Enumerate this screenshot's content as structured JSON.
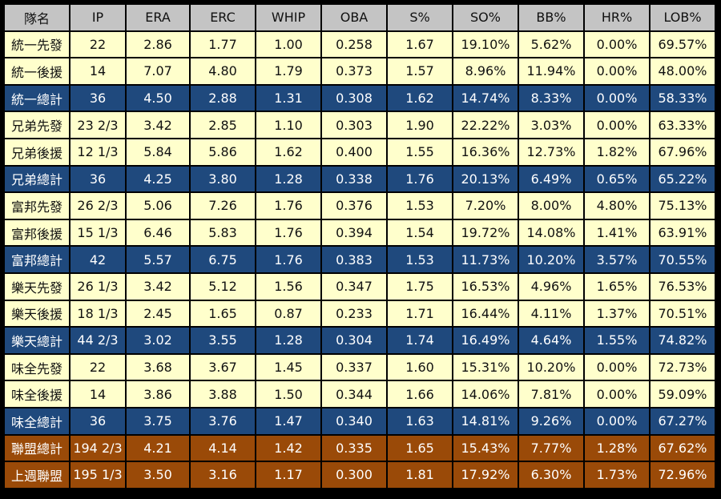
{
  "columns": [
    "隊名",
    "IP",
    "ERA",
    "ERC",
    "WHIP",
    "OBA",
    "S%",
    "SO%",
    "BB%",
    "HR%",
    "LOB%"
  ],
  "rows": [
    {
      "type": "start",
      "cells": [
        "統一先發",
        "22",
        "2.86",
        "1.77",
        "1.00",
        "0.258",
        "1.67",
        "19.10%",
        "5.62%",
        "0.00%",
        "69.57%"
      ]
    },
    {
      "type": "relief",
      "cells": [
        "統一後援",
        "14",
        "7.07",
        "4.80",
        "1.79",
        "0.373",
        "1.57",
        "8.96%",
        "11.94%",
        "0.00%",
        "48.00%"
      ]
    },
    {
      "type": "team",
      "cells": [
        "統一總計",
        "36",
        "4.50",
        "2.88",
        "1.31",
        "0.308",
        "1.62",
        "14.74%",
        "8.33%",
        "0.00%",
        "58.33%"
      ]
    },
    {
      "type": "start",
      "cells": [
        "兄弟先發",
        "23 2/3",
        "3.42",
        "2.85",
        "1.10",
        "0.303",
        "1.90",
        "22.22%",
        "3.03%",
        "0.00%",
        "63.33%"
      ]
    },
    {
      "type": "relief",
      "cells": [
        "兄弟後援",
        "12 1/3",
        "5.84",
        "5.86",
        "1.62",
        "0.400",
        "1.55",
        "16.36%",
        "12.73%",
        "1.82%",
        "67.96%"
      ]
    },
    {
      "type": "team",
      "cells": [
        "兄弟總計",
        "36",
        "4.25",
        "3.80",
        "1.28",
        "0.338",
        "1.76",
        "20.13%",
        "6.49%",
        "0.65%",
        "65.22%"
      ]
    },
    {
      "type": "start",
      "cells": [
        "富邦先發",
        "26 2/3",
        "5.06",
        "7.26",
        "1.76",
        "0.376",
        "1.53",
        "7.20%",
        "8.00%",
        "4.80%",
        "75.13%"
      ]
    },
    {
      "type": "relief",
      "cells": [
        "富邦後援",
        "15 1/3",
        "6.46",
        "5.83",
        "1.76",
        "0.394",
        "1.54",
        "19.72%",
        "14.08%",
        "1.41%",
        "63.91%"
      ]
    },
    {
      "type": "team",
      "cells": [
        "富邦總計",
        "42",
        "5.57",
        "6.75",
        "1.76",
        "0.383",
        "1.53",
        "11.73%",
        "10.20%",
        "3.57%",
        "70.55%"
      ]
    },
    {
      "type": "start",
      "cells": [
        "樂天先發",
        "26 1/3",
        "3.42",
        "5.12",
        "1.56",
        "0.347",
        "1.75",
        "16.53%",
        "4.96%",
        "1.65%",
        "76.53%"
      ]
    },
    {
      "type": "relief",
      "cells": [
        "樂天後援",
        "18 1/3",
        "2.45",
        "1.65",
        "0.87",
        "0.233",
        "1.71",
        "16.44%",
        "4.11%",
        "1.37%",
        "70.51%"
      ]
    },
    {
      "type": "team",
      "cells": [
        "樂天總計",
        "44 2/3",
        "3.02",
        "3.55",
        "1.28",
        "0.304",
        "1.74",
        "16.49%",
        "4.64%",
        "1.55%",
        "74.82%"
      ]
    },
    {
      "type": "start",
      "cells": [
        "味全先發",
        "22",
        "3.68",
        "3.67",
        "1.45",
        "0.337",
        "1.60",
        "15.31%",
        "10.20%",
        "0.00%",
        "72.73%"
      ]
    },
    {
      "type": "relief",
      "cells": [
        "味全後援",
        "14",
        "3.86",
        "3.88",
        "1.50",
        "0.344",
        "1.66",
        "14.06%",
        "7.81%",
        "0.00%",
        "59.09%"
      ]
    },
    {
      "type": "team",
      "cells": [
        "味全總計",
        "36",
        "3.75",
        "3.76",
        "1.47",
        "0.340",
        "1.63",
        "14.81%",
        "9.26%",
        "0.00%",
        "67.27%"
      ]
    },
    {
      "type": "league",
      "cells": [
        "聯盟總計",
        "194 2/3",
        "4.21",
        "4.14",
        "1.42",
        "0.335",
        "1.65",
        "15.43%",
        "7.77%",
        "1.28%",
        "67.62%"
      ]
    },
    {
      "type": "league",
      "cells": [
        "上週聯盟",
        "195 1/3",
        "3.50",
        "3.16",
        "1.17",
        "0.300",
        "1.81",
        "17.92%",
        "6.30%",
        "1.73%",
        "72.96%"
      ]
    }
  ],
  "colors": {
    "header_bg": "#c4c4c4",
    "row_bg": "#ffffcc",
    "team_total_bg": "#1f497d",
    "league_bg": "#9a4a08",
    "border": "#000000"
  }
}
